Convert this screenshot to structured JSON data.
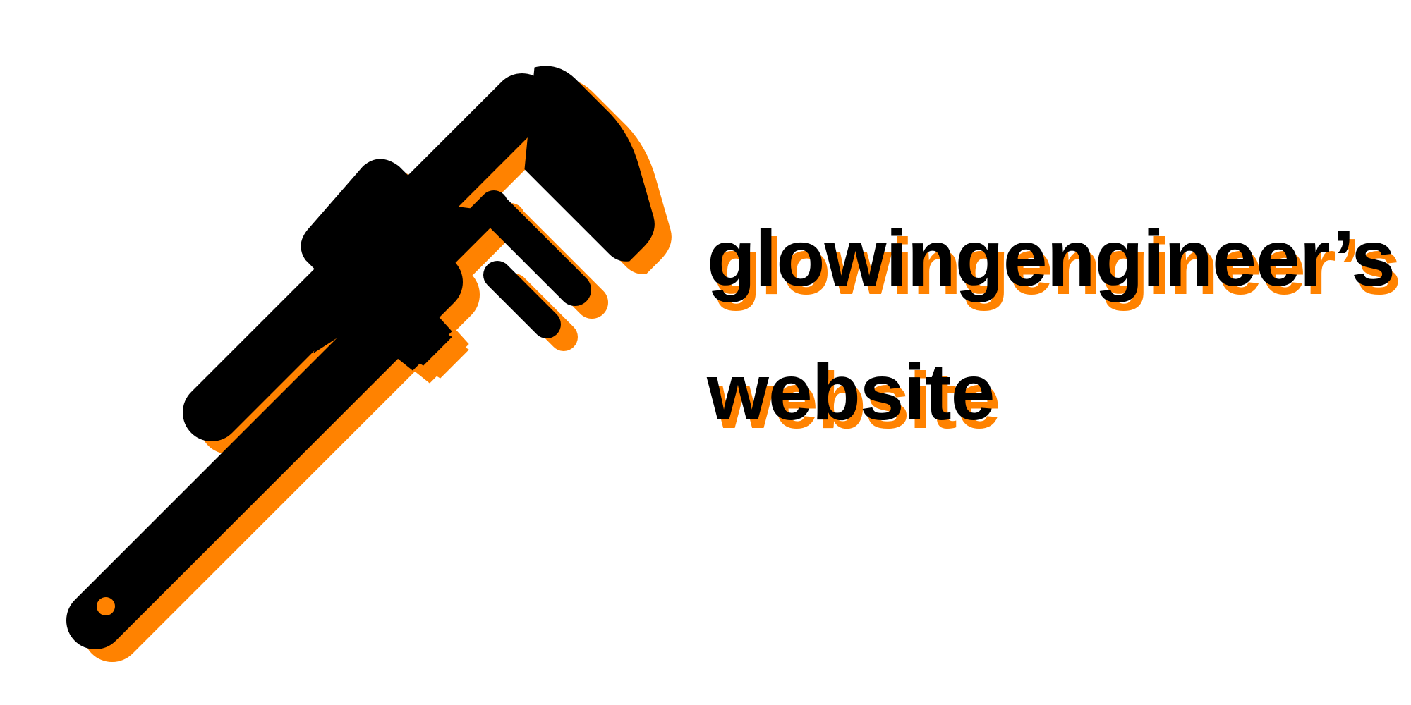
{
  "site": {
    "title_line_1": "glowingengineer’s",
    "title_line_2": "website"
  },
  "logo": {
    "icon": "pipe-wrench-icon"
  },
  "colors": {
    "background": "#ffffff",
    "foreground": "#000000",
    "accent": "#ff8200"
  }
}
